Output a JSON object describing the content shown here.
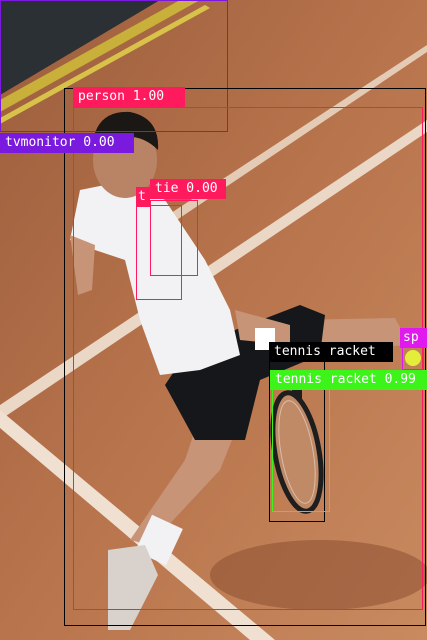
{
  "detections": [
    {
      "label": "person 1.00",
      "color": "#ff1a5e"
    },
    {
      "label": "tvmonitor 0.00",
      "color": "#7a1adf"
    },
    {
      "label": "tie 0.00",
      "color": "#ff1a5e"
    },
    {
      "label": "t",
      "color": "#ff1a5e"
    },
    {
      "label": "tennis racket",
      "color": "#000000"
    },
    {
      "label": "tennis racket 0.99",
      "color": "#3cf31a"
    },
    {
      "label": "sp",
      "color": "#e01aef"
    }
  ]
}
